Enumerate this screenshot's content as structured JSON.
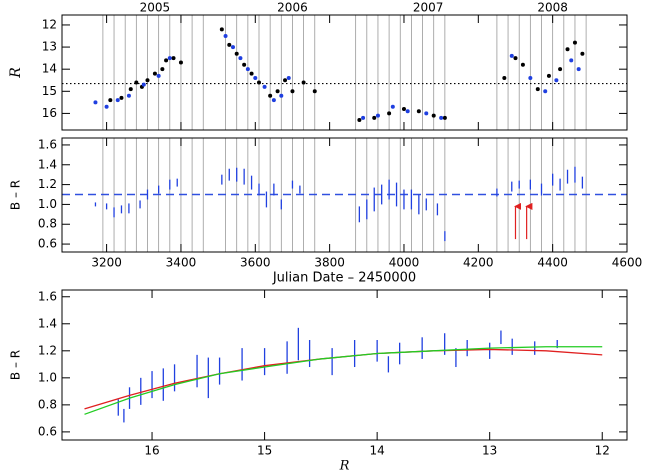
{
  "chart_data": [
    {
      "type": "scatter",
      "ylabel": "R",
      "xlim": [
        3080,
        4600
      ],
      "ylim": [
        16.75,
        11.55
      ],
      "yticks": [
        12,
        13,
        14,
        15,
        16
      ],
      "x2ticks": [
        {
          "value": 3330,
          "label": "2005"
        },
        {
          "value": 3700,
          "label": "2006"
        },
        {
          "value": 4065,
          "label": "2007"
        },
        {
          "value": 4400,
          "label": "2008"
        }
      ],
      "vlines": [
        3190,
        3220,
        3250,
        3280,
        3310,
        3340,
        3370,
        3400,
        3430,
        3460,
        3520,
        3550,
        3580,
        3610,
        3640,
        3670,
        3700,
        3730,
        3760,
        3870,
        3900,
        3930,
        3960,
        3990,
        4020,
        4050,
        4080,
        4110,
        4250,
        4280,
        4310,
        4340,
        4370,
        4400,
        4430,
        4460,
        4490
      ],
      "hline": 14.65,
      "series": [
        {
          "color": "#000000",
          "x": [
            3210,
            3240,
            3265,
            3280,
            3295,
            3310,
            3330,
            3350,
            3360,
            3380,
            3400,
            3510,
            3530,
            3550,
            3570,
            3590,
            3610,
            3640,
            3660,
            3680,
            3700,
            3730,
            3760,
            3880,
            3920,
            3960,
            4000,
            4040,
            4080,
            4110,
            4270,
            4300,
            4320,
            4360,
            4390,
            4420,
            4440,
            4460,
            4480
          ],
          "values": [
            15.4,
            15.3,
            14.9,
            14.6,
            14.8,
            14.5,
            14.2,
            14.0,
            13.6,
            13.5,
            13.7,
            12.2,
            12.9,
            13.3,
            13.8,
            14.2,
            14.6,
            15.2,
            15.0,
            14.5,
            15.0,
            14.6,
            15.0,
            16.3,
            16.2,
            16.0,
            15.8,
            15.9,
            16.1,
            16.2,
            14.4,
            13.5,
            13.8,
            14.9,
            14.3,
            14.0,
            13.1,
            12.8,
            13.3
          ]
        },
        {
          "color": "#1f3fe0",
          "x": [
            3170,
            3200,
            3230,
            3260,
            3300,
            3340,
            3370,
            3520,
            3540,
            3560,
            3580,
            3600,
            3625,
            3650,
            3670,
            3690,
            3890,
            3930,
            3970,
            4010,
            4060,
            4100,
            4290,
            4340,
            4380,
            4410,
            4450,
            4470
          ],
          "values": [
            15.5,
            15.7,
            15.4,
            15.2,
            14.7,
            14.3,
            13.5,
            12.5,
            13.0,
            13.5,
            14.0,
            14.4,
            14.8,
            15.4,
            15.2,
            14.4,
            16.2,
            16.1,
            15.7,
            15.9,
            16.0,
            16.2,
            13.4,
            14.4,
            15.0,
            14.5,
            13.6,
            14.0
          ]
        }
      ]
    },
    {
      "type": "errorbar",
      "ylabel": "B – R",
      "xlabel": "Julian Date – 2450000",
      "xlim": [
        3080,
        4600
      ],
      "ylim": [
        0.52,
        1.67
      ],
      "xticks": [
        3200,
        3400,
        3600,
        3800,
        4000,
        4200,
        4400,
        4600
      ],
      "yticks": [
        0.6,
        0.8,
        {
          "value": 1,
          "label": "1.0"
        },
        1.2,
        1.4,
        1.6
      ],
      "hline": 1.1,
      "arrows": [
        {
          "x": 4300,
          "y0": 0.65,
          "y1": 0.98
        },
        {
          "x": 4330,
          "y0": 0.65,
          "y1": 0.98
        }
      ],
      "color": "#2040e0",
      "x": [
        3170,
        3200,
        3220,
        3240,
        3260,
        3290,
        3310,
        3340,
        3370,
        3390,
        3510,
        3530,
        3550,
        3570,
        3590,
        3610,
        3630,
        3650,
        3670,
        3700,
        3720,
        3880,
        3900,
        3920,
        3940,
        3960,
        3980,
        4000,
        4020,
        4040,
        4060,
        4090,
        4110,
        4250,
        4290,
        4310,
        4340,
        4370,
        4400,
        4420,
        4440,
        4460,
        4480
      ],
      "values": [
        1.0,
        0.98,
        0.92,
        0.95,
        0.96,
        1.0,
        1.1,
        1.15,
        1.2,
        1.22,
        1.25,
        1.3,
        1.3,
        1.28,
        1.22,
        1.15,
        1.05,
        1.15,
        1.0,
        1.2,
        1.15,
        0.9,
        0.95,
        1.05,
        1.1,
        1.15,
        1.1,
        1.05,
        1.05,
        1.0,
        1.0,
        0.95,
        0.68,
        1.12,
        1.18,
        1.2,
        1.2,
        1.15,
        1.25,
        1.2,
        1.28,
        1.3,
        1.22
      ],
      "errors": [
        0.02,
        0.03,
        0.05,
        0.04,
        0.05,
        0.04,
        0.05,
        0.04,
        0.05,
        0.04,
        0.05,
        0.06,
        0.07,
        0.08,
        0.07,
        0.06,
        0.08,
        0.06,
        0.05,
        0.04,
        0.04,
        0.08,
        0.1,
        0.12,
        0.1,
        0.1,
        0.12,
        0.1,
        0.1,
        0.1,
        0.06,
        0.06,
        0.05,
        0.04,
        0.05,
        0.04,
        0.05,
        0.06,
        0.06,
        0.06,
        0.07,
        0.08,
        0.06
      ]
    },
    {
      "type": "errorbar",
      "ylabel": "B – R",
      "xlabel": "R",
      "xlim": [
        16.8,
        11.78
      ],
      "ylim": [
        0.54,
        1.65
      ],
      "xticks": [
        16,
        15,
        14,
        13,
        12
      ],
      "yticks": [
        0.6,
        0.8,
        {
          "value": 1,
          "label": "1.0"
        },
        1.2,
        1.4,
        1.6
      ],
      "color": "#2040e0",
      "x": [
        16.3,
        16.2,
        16.1,
        16.0,
        15.9,
        15.8,
        15.6,
        15.4,
        15.2,
        15.0,
        14.8,
        14.6,
        14.4,
        14.2,
        14.0,
        13.8,
        13.6,
        13.4,
        13.2,
        13.0,
        12.8,
        12.6,
        12.4,
        16.25,
        15.5,
        14.7,
        13.9,
        13.3,
        12.9
      ],
      "values": [
        0.78,
        0.85,
        0.9,
        0.95,
        0.95,
        1.0,
        1.05,
        1.05,
        1.1,
        1.12,
        1.15,
        1.18,
        1.12,
        1.18,
        1.2,
        1.18,
        1.22,
        1.25,
        1.22,
        1.2,
        1.23,
        1.22,
        1.25,
        0.72,
        1.0,
        1.25,
        1.1,
        1.15,
        1.3
      ],
      "errors": [
        0.06,
        0.08,
        0.1,
        0.1,
        0.12,
        0.1,
        0.12,
        0.1,
        0.12,
        0.1,
        0.12,
        0.1,
        0.1,
        0.1,
        0.08,
        0.08,
        0.08,
        0.08,
        0.06,
        0.06,
        0.06,
        0.05,
        0.03,
        0.05,
        0.15,
        0.12,
        0.06,
        0.07,
        0.05
      ],
      "curves": [
        {
          "color": "#e02020",
          "x": [
            16.6,
            16.2,
            15.8,
            15.4,
            15.0,
            14.5,
            14.0,
            13.5,
            13.0,
            12.5,
            12.0
          ],
          "values": [
            0.77,
            0.87,
            0.96,
            1.03,
            1.09,
            1.14,
            1.18,
            1.2,
            1.21,
            1.2,
            1.17
          ]
        },
        {
          "color": "#22cc22",
          "x": [
            16.6,
            16.2,
            15.8,
            15.4,
            15.0,
            14.5,
            14.0,
            13.5,
            13.0,
            12.5,
            12.0
          ],
          "values": [
            0.73,
            0.85,
            0.95,
            1.03,
            1.08,
            1.14,
            1.18,
            1.2,
            1.22,
            1.23,
            1.23
          ]
        }
      ]
    }
  ]
}
